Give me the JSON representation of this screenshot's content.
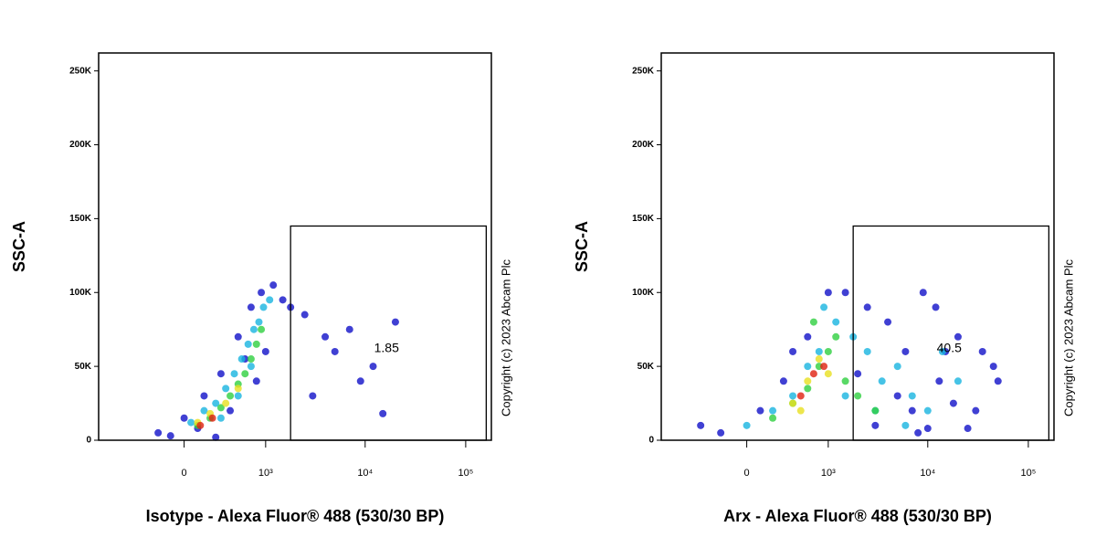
{
  "chart_data": [
    {
      "type": "scatter",
      "xlabel": "Isotype - Alexa Fluor® 488 (530/30 BP)",
      "ylabel": "SSC-A",
      "annotation": "Copyright (c) 2023 Abcam Plc",
      "xscale": "logicle",
      "xlim": [
        -1100,
        180000
      ],
      "ylim": [
        0,
        262144
      ],
      "xticks": [
        0,
        {
          "value": 1000,
          "label": "10³"
        },
        {
          "value": 10000,
          "label": "10⁴"
        },
        {
          "value": 100000,
          "label": "10⁵"
        }
      ],
      "yticks": [
        0,
        {
          "value": 50000,
          "label": "50K"
        },
        {
          "value": 100000,
          "label": "100K"
        },
        {
          "value": 150000,
          "label": "150K"
        },
        {
          "value": 200000,
          "label": "200K"
        },
        {
          "value": 250000,
          "label": "250K"
        }
      ],
      "gate": {
        "x": [
          1800,
          160000
        ],
        "y": [
          0,
          145000
        ],
        "value": 1.85
      },
      "series": [
        {
          "color": "#1010c8",
          "x": [
            -200,
            0,
            150,
            300,
            100,
            500,
            700,
            900,
            1200,
            1500,
            400,
            800,
            1000,
            600,
            2500,
            4000,
            7000,
            12000,
            20000,
            3000,
            9000,
            15000,
            5000,
            1800,
            -100,
            250
          ],
          "y": [
            5000,
            15000,
            30000,
            45000,
            8000,
            70000,
            90000,
            100000,
            105000,
            95000,
            20000,
            40000,
            60000,
            55000,
            85000,
            70000,
            75000,
            50000,
            80000,
            30000,
            40000,
            18000,
            60000,
            90000,
            3000,
            2000
          ]
        },
        {
          "color": "#18b4e0",
          "x": [
            50,
            150,
            250,
            350,
            450,
            550,
            650,
            750,
            850,
            950,
            1100,
            300,
            500,
            700
          ],
          "y": [
            12000,
            20000,
            25000,
            35000,
            45000,
            55000,
            65000,
            75000,
            80000,
            90000,
            95000,
            15000,
            30000,
            50000
          ]
        },
        {
          "color": "#30d040",
          "x": [
            100,
            200,
            300,
            400,
            500,
            600,
            700,
            800,
            900
          ],
          "y": [
            10000,
            15000,
            22000,
            30000,
            38000,
            45000,
            55000,
            65000,
            75000
          ]
        },
        {
          "color": "#e8e020",
          "x": [
            100,
            200,
            350,
            500
          ],
          "y": [
            12000,
            18000,
            25000,
            35000
          ]
        },
        {
          "color": "#e02010",
          "x": [
            120,
            220
          ],
          "y": [
            10000,
            15000
          ]
        }
      ]
    },
    {
      "type": "scatter",
      "xlabel": "Arx - Alexa Fluor® 488 (530/30 BP)",
      "ylabel": "SSC-A",
      "annotation": "Copyright (c) 2023 Abcam Plc",
      "xscale": "logicle",
      "xlim": [
        -1100,
        180000
      ],
      "ylim": [
        0,
        262144
      ],
      "xticks": [
        0,
        {
          "value": 1000,
          "label": "10³"
        },
        {
          "value": 10000,
          "label": "10⁴"
        },
        {
          "value": 100000,
          "label": "10⁵"
        }
      ],
      "yticks": [
        0,
        {
          "value": 50000,
          "label": "50K"
        },
        {
          "value": 100000,
          "label": "100K"
        },
        {
          "value": 150000,
          "label": "150K"
        },
        {
          "value": 200000,
          "label": "200K"
        },
        {
          "value": 250000,
          "label": "250K"
        }
      ],
      "gate": {
        "x": [
          1800,
          160000
        ],
        "y": [
          0,
          145000
        ],
        "value": 40.5
      },
      "series": [
        {
          "color": "#1010c8",
          "x": [
            -400,
            -200,
            100,
            300,
            600,
            1500,
            2500,
            4000,
            6000,
            9000,
            13000,
            20000,
            30000,
            45000,
            3000,
            5000,
            8000,
            12000,
            18000,
            25000,
            35000,
            2000,
            7000,
            15000,
            50000,
            1000,
            400,
            10000
          ],
          "y": [
            10000,
            5000,
            20000,
            40000,
            70000,
            100000,
            90000,
            80000,
            60000,
            100000,
            40000,
            70000,
            20000,
            50000,
            10000,
            30000,
            5000,
            90000,
            25000,
            8000,
            60000,
            45000,
            20000,
            60000,
            40000,
            100000,
            60000,
            8000
          ]
        },
        {
          "color": "#18b4e0",
          "x": [
            0,
            200,
            400,
            600,
            800,
            1200,
            1800,
            2500,
            3500,
            5000,
            7000,
            10000,
            14000,
            20000,
            1500,
            3000,
            6000,
            900
          ],
          "y": [
            10000,
            20000,
            30000,
            50000,
            60000,
            80000,
            70000,
            60000,
            40000,
            50000,
            30000,
            20000,
            60000,
            40000,
            30000,
            20000,
            10000,
            90000
          ]
        },
        {
          "color": "#30d040",
          "x": [
            200,
            400,
            600,
            800,
            1000,
            1500,
            2000,
            3000,
            700,
            1200
          ],
          "y": [
            15000,
            25000,
            35000,
            50000,
            60000,
            40000,
            30000,
            20000,
            80000,
            70000
          ]
        },
        {
          "color": "#e8e020",
          "x": [
            400,
            600,
            800,
            1000,
            500
          ],
          "y": [
            25000,
            40000,
            55000,
            45000,
            20000
          ]
        },
        {
          "color": "#e02010",
          "x": [
            500,
            700,
            900
          ],
          "y": [
            30000,
            45000,
            50000
          ]
        }
      ]
    }
  ]
}
